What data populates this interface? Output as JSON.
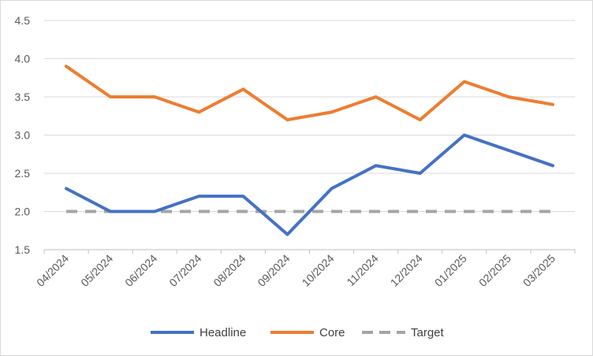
{
  "chart_data": {
    "type": "line",
    "title": "",
    "xlabel": "",
    "ylabel": "",
    "categories": [
      "04/2024",
      "05/2024",
      "06/2024",
      "07/2024",
      "08/2024",
      "09/2024",
      "10/2024",
      "11/2024",
      "12/2024",
      "01/2025",
      "02/2025",
      "03/2025"
    ],
    "ylim": [
      1.5,
      4.5
    ],
    "y_ticks": [
      "1.5",
      "2.0",
      "2.5",
      "3.0",
      "3.5",
      "4.0",
      "4.5"
    ],
    "grid": true,
    "legend_position": "bottom",
    "series": [
      {
        "name": "Headline",
        "color": "#4472c4",
        "dashed": false,
        "values": [
          2.3,
          2.0,
          2.0,
          2.2,
          2.2,
          1.7,
          2.3,
          2.6,
          2.5,
          3.0,
          2.8,
          2.6
        ]
      },
      {
        "name": "Core",
        "color": "#ed7d31",
        "dashed": false,
        "values": [
          3.9,
          3.5,
          3.5,
          3.3,
          3.6,
          3.2,
          3.3,
          3.5,
          3.2,
          3.7,
          3.5,
          3.4
        ]
      },
      {
        "name": "Target",
        "color": "#a5a5a5",
        "dashed": true,
        "values": [
          2.0,
          2.0,
          2.0,
          2.0,
          2.0,
          2.0,
          2.0,
          2.0,
          2.0,
          2.0,
          2.0,
          2.0
        ]
      }
    ]
  }
}
